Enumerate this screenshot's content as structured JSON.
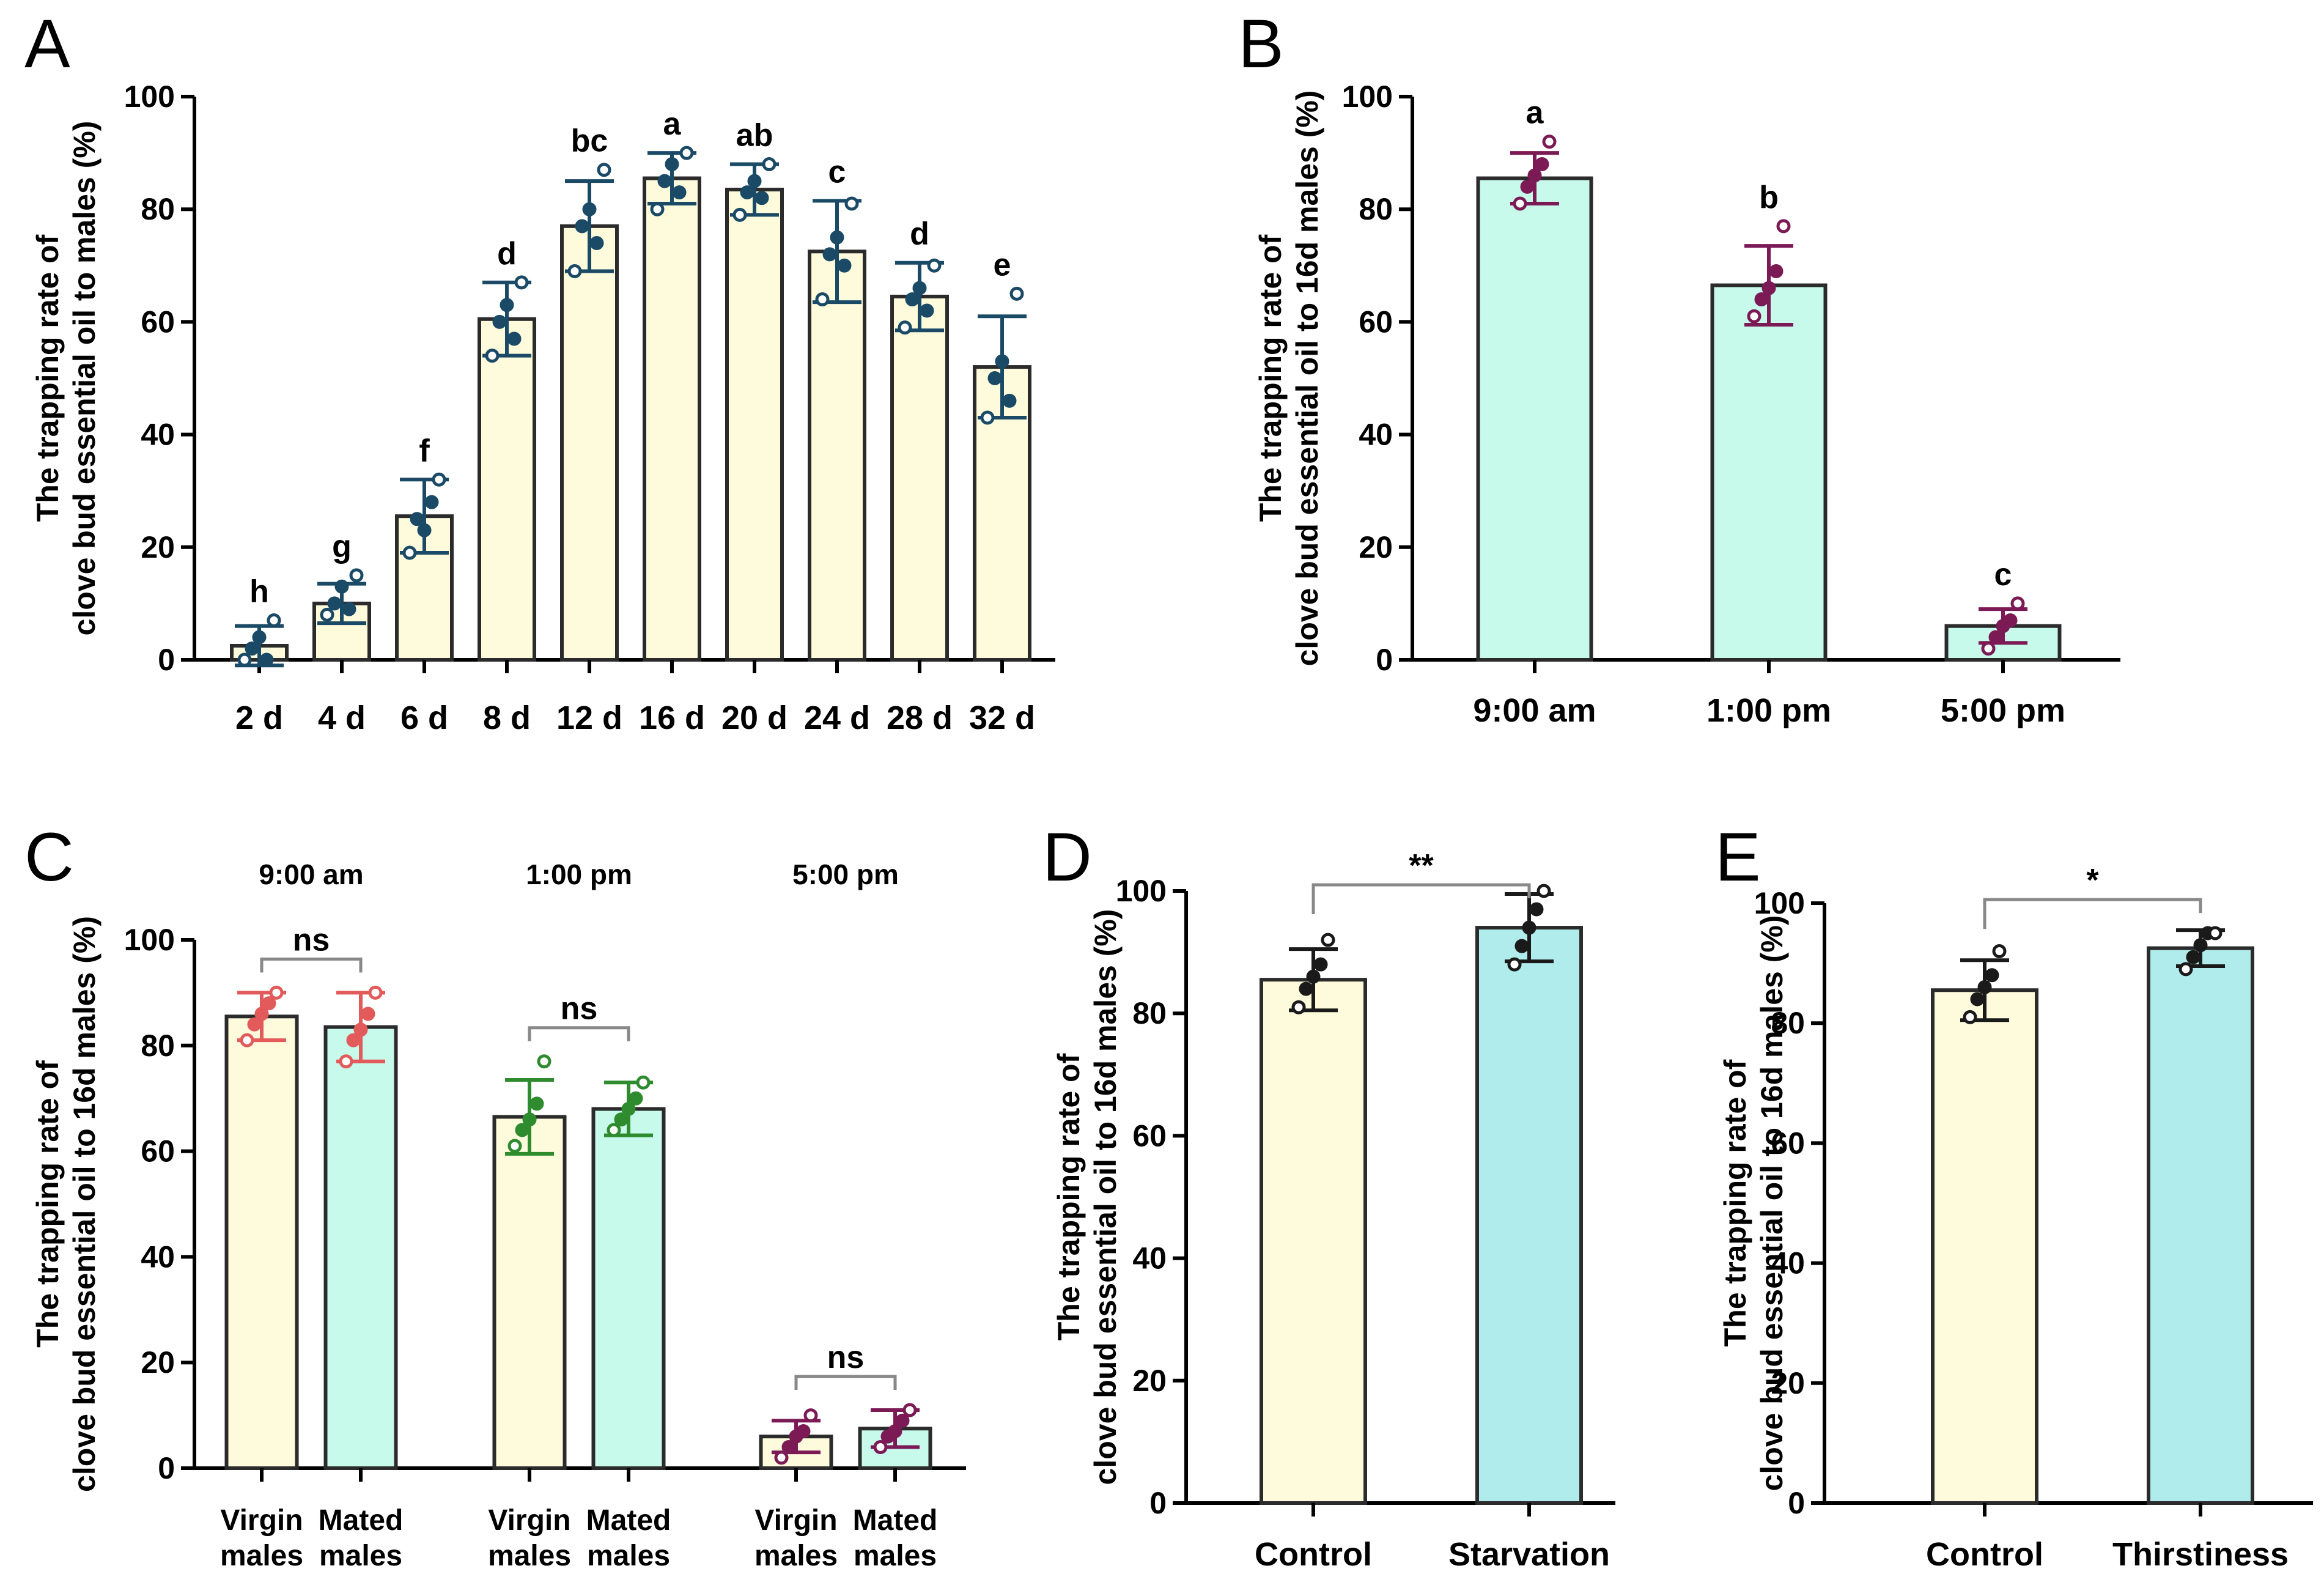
{
  "chart_data": [
    {
      "panel": "A",
      "type": "bar",
      "ylabel": [
        "The trapping rate of",
        "clove bud essential oil to males (%)"
      ],
      "ylim": [
        0,
        100
      ],
      "yticks": [
        0,
        20,
        40,
        60,
        80,
        100
      ],
      "categories": [
        "2 d",
        "4 d",
        "6 d",
        "8 d",
        "12 d",
        "16 d",
        "20 d",
        "24 d",
        "28 d",
        "32 d"
      ],
      "values": [
        2.5,
        10,
        25.5,
        60.5,
        77,
        85.5,
        83.5,
        72.5,
        64.5,
        52
      ],
      "errors": [
        3.5,
        3.5,
        6.5,
        6.5,
        8,
        4.5,
        4.5,
        9,
        6,
        9
      ],
      "letters": [
        "h",
        "g",
        "f",
        "d",
        "bc",
        "a",
        "ab",
        "c",
        "d",
        "e"
      ],
      "points": [
        [
          0,
          2,
          4,
          0,
          7
        ],
        [
          8,
          10,
          13,
          9,
          15
        ],
        [
          19,
          25,
          23,
          28,
          32
        ],
        [
          54,
          60,
          63,
          57,
          67
        ],
        [
          69,
          77,
          80,
          74,
          87
        ],
        [
          80,
          85,
          88,
          83,
          90
        ],
        [
          79,
          83,
          85,
          82,
          88
        ],
        [
          64,
          72,
          75,
          70,
          81
        ],
        [
          59,
          64,
          66,
          62,
          70
        ],
        [
          43,
          50,
          53,
          46,
          65
        ]
      ],
      "bar_color": "#fdfbdc",
      "point_color": "#1b4a66"
    },
    {
      "panel": "B",
      "type": "bar",
      "ylabel": [
        "The trapping rate of",
        "clove bud essential oil to 16d males (%)"
      ],
      "ylim": [
        0,
        100
      ],
      "yticks": [
        0,
        20,
        40,
        60,
        80,
        100
      ],
      "categories": [
        "9:00 am",
        "1:00 pm",
        "5:00 pm"
      ],
      "values": [
        85.5,
        66.5,
        6
      ],
      "errors": [
        4.5,
        7,
        3
      ],
      "letters": [
        "a",
        "b",
        "c"
      ],
      "points": [
        [
          81,
          84,
          86,
          88,
          92
        ],
        [
          61,
          64,
          66,
          69,
          77
        ],
        [
          2,
          4,
          6,
          7,
          10
        ]
      ],
      "bar_color": "#c7faeb",
      "point_color": "#7b1a55"
    },
    {
      "panel": "C",
      "type": "bar",
      "ylabel": [
        "The trapping rate of",
        "clove bud essential oil to 16d males (%)"
      ],
      "ylim": [
        0,
        100
      ],
      "yticks": [
        0,
        20,
        40,
        60,
        80,
        100
      ],
      "groups": [
        "9:00 am",
        "1:00 pm",
        "5:00 pm"
      ],
      "categories": [
        "Virgin males",
        "Mated males",
        "Virgin males",
        "Mated males",
        "Virgin males",
        "Mated males"
      ],
      "values": [
        85.5,
        83.5,
        66.5,
        68,
        6,
        7.5
      ],
      "errors": [
        4.5,
        6.5,
        7,
        5,
        3,
        3.5
      ],
      "colors": [
        "#fdfbdc",
        "#c7faeb",
        "#fdfbdc",
        "#c7faeb",
        "#fdfbdc",
        "#c7faeb"
      ],
      "point_colors": [
        "#e35a5a",
        "#e35a5a",
        "#2e8b2e",
        "#2e8b2e",
        "#7b1a55",
        "#7b1a55"
      ],
      "points": [
        [
          81,
          84,
          86,
          88,
          90
        ],
        [
          77,
          81,
          83,
          86,
          90
        ],
        [
          61,
          64,
          66,
          69,
          77
        ],
        [
          64,
          66,
          68,
          70,
          73
        ],
        [
          2,
          4,
          6,
          7,
          10
        ],
        [
          4,
          6,
          7,
          9,
          11
        ]
      ],
      "comparisons": [
        "ns",
        "ns",
        "ns"
      ]
    },
    {
      "panel": "D",
      "type": "bar",
      "ylabel": [
        "The trapping rate of",
        "clove bud essential oil to 16d males (%)"
      ],
      "ylim": [
        0,
        100
      ],
      "yticks": [
        0,
        20,
        40,
        60,
        80,
        100
      ],
      "categories": [
        "Control",
        "Starvation"
      ],
      "values": [
        85.5,
        94
      ],
      "errors": [
        5,
        5.5
      ],
      "colors": [
        "#fdfbdc",
        "#b1ecec"
      ],
      "point_color": "#1a1a1a",
      "points": [
        [
          81,
          84,
          86,
          88,
          92
        ],
        [
          88,
          91,
          94,
          97,
          100
        ]
      ],
      "comparison": "**"
    },
    {
      "panel": "E",
      "type": "bar",
      "ylabel": [
        "The trapping rate of",
        "clove bud essential oil to 16d males (%)"
      ],
      "ylim": [
        0,
        100
      ],
      "yticks": [
        0,
        20,
        40,
        60,
        80,
        100
      ],
      "categories": [
        "Control",
        "Thirstiness"
      ],
      "values": [
        85.5,
        92.5
      ],
      "errors": [
        5,
        3
      ],
      "colors": [
        "#fdfbdc",
        "#b1ecec"
      ],
      "point_color": "#1a1a1a",
      "points": [
        [
          81,
          84,
          86,
          88,
          92
        ],
        [
          89,
          91,
          93,
          95,
          95
        ]
      ],
      "comparison": "*"
    }
  ],
  "panel_letters": [
    "A",
    "B",
    "C",
    "D",
    "E"
  ]
}
